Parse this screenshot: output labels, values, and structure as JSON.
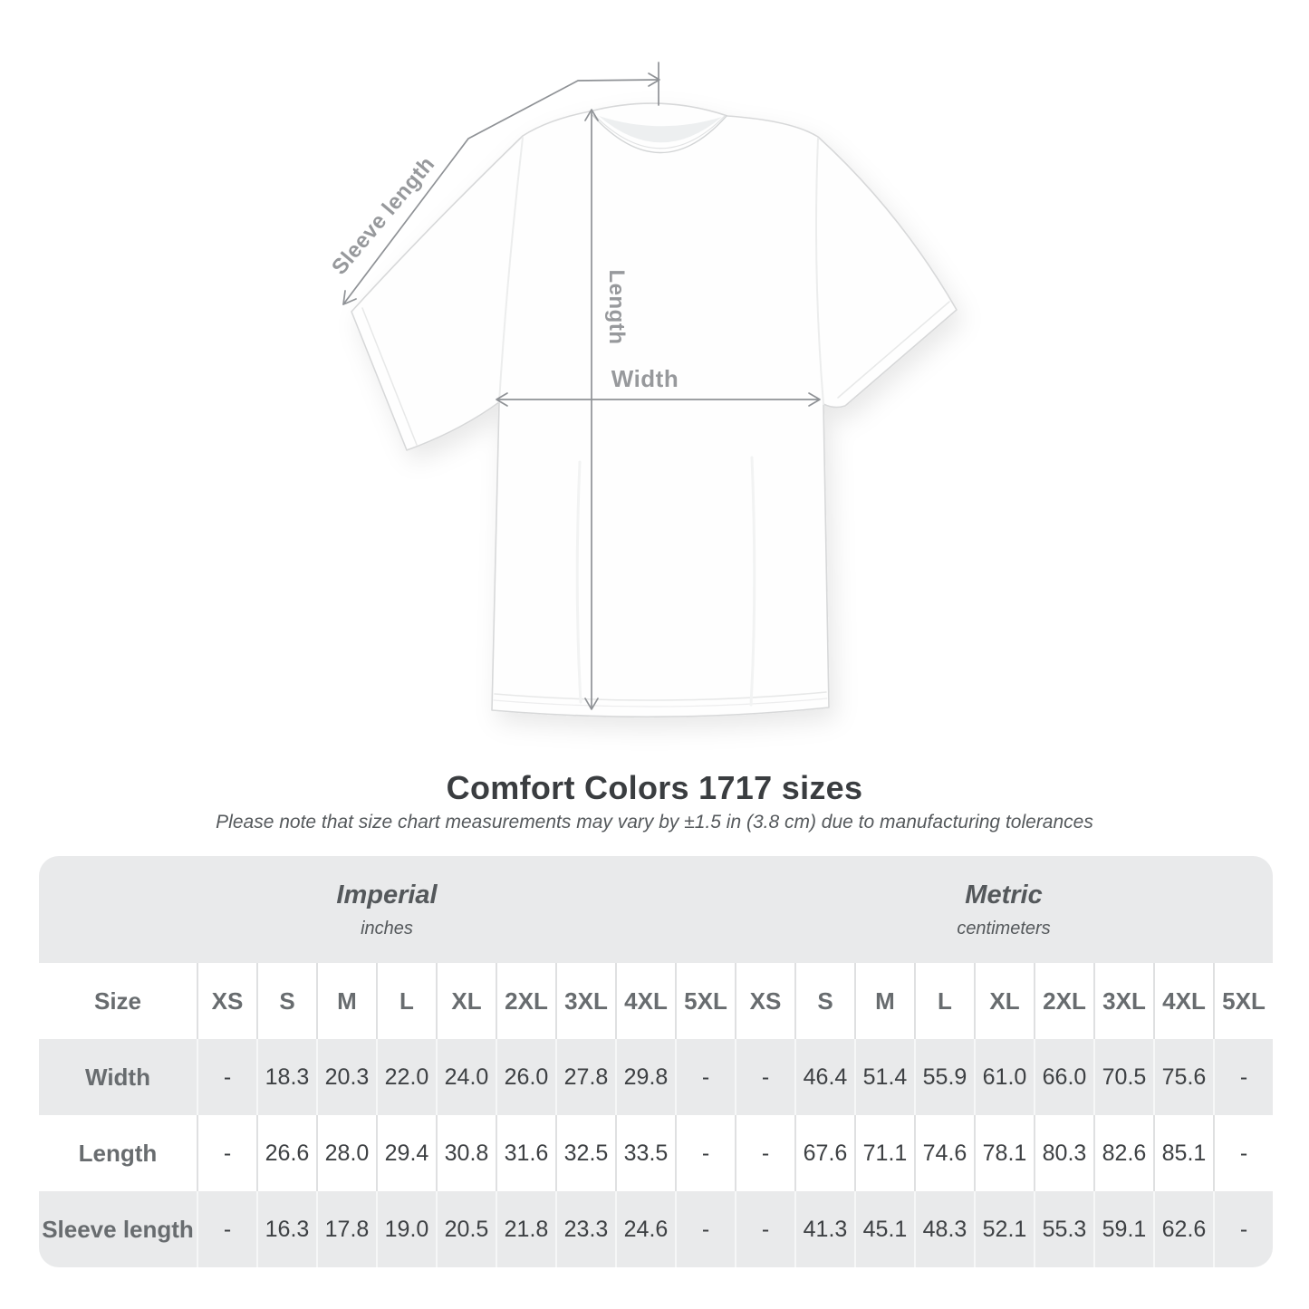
{
  "title": "Comfort Colors 1717 sizes",
  "note": "Please note that size chart measurements may vary by ±1.5 in (3.8 cm) due to manufacturing tolerances",
  "diagram": {
    "sleeve_label": "Sleeve length",
    "length_label": "Length",
    "width_label": "Width"
  },
  "colors": {
    "measure_line": "#8f9296",
    "measure_text": "#97999c",
    "band_gray": "#e9eaeb",
    "header_text": "#686c6f",
    "value_text": "#3d4043"
  },
  "table": {
    "size_header": "Size",
    "groups": [
      {
        "name": "Imperial",
        "unit": "inches"
      },
      {
        "name": "Metric",
        "unit": "centimeters"
      }
    ],
    "sizes": [
      "XS",
      "S",
      "M",
      "L",
      "XL",
      "2XL",
      "3XL",
      "4XL",
      "5XL"
    ],
    "rows": [
      {
        "label": "Width",
        "imperial": [
          "-",
          "18.3",
          "20.3",
          "22.0",
          "24.0",
          "26.0",
          "27.8",
          "29.8",
          "-"
        ],
        "metric": [
          "-",
          "46.4",
          "51.4",
          "55.9",
          "61.0",
          "66.0",
          "70.5",
          "75.6",
          "-"
        ]
      },
      {
        "label": "Length",
        "imperial": [
          "-",
          "26.6",
          "28.0",
          "29.4",
          "30.8",
          "31.6",
          "32.5",
          "33.5",
          "-"
        ],
        "metric": [
          "-",
          "67.6",
          "71.1",
          "74.6",
          "78.1",
          "80.3",
          "82.6",
          "85.1",
          "-"
        ]
      },
      {
        "label": "Sleeve length",
        "imperial": [
          "-",
          "16.3",
          "17.8",
          "19.0",
          "20.5",
          "21.8",
          "23.3",
          "24.6",
          "-"
        ],
        "metric": [
          "-",
          "41.3",
          "45.1",
          "48.3",
          "52.1",
          "55.3",
          "59.1",
          "62.6",
          "-"
        ]
      }
    ]
  }
}
